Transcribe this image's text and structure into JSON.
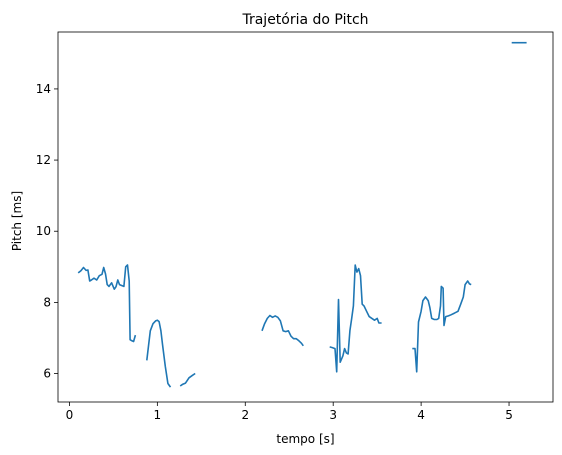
{
  "chart_data": {
    "type": "line",
    "title": "Trajetória do Pitch",
    "xlabel": "tempo [s]",
    "ylabel": "Pitch [ms]",
    "xlim": [
      -0.13,
      5.5
    ],
    "ylim": [
      5.2,
      15.6
    ],
    "xticks": [
      0,
      1,
      2,
      3,
      4,
      5
    ],
    "xtick_labels": [
      "0",
      "1",
      "2",
      "3",
      "4",
      "5"
    ],
    "yticks": [
      6,
      8,
      10,
      12,
      14
    ],
    "ytick_labels": [
      "6",
      "8",
      "10",
      "12",
      "14"
    ],
    "grid": false,
    "color": "#1f77b4",
    "series": [
      {
        "segments": [
          [
            [
              0.1,
              8.83
            ],
            [
              0.13,
              8.89
            ],
            [
              0.16,
              8.98
            ],
            [
              0.19,
              8.9
            ],
            [
              0.21,
              8.91
            ],
            [
              0.23,
              8.6
            ],
            [
              0.25,
              8.63
            ],
            [
              0.28,
              8.68
            ],
            [
              0.31,
              8.63
            ],
            [
              0.34,
              8.75
            ],
            [
              0.37,
              8.79
            ],
            [
              0.39,
              8.98
            ],
            [
              0.41,
              8.8
            ],
            [
              0.43,
              8.5
            ],
            [
              0.45,
              8.45
            ],
            [
              0.48,
              8.55
            ],
            [
              0.51,
              8.37
            ],
            [
              0.53,
              8.44
            ],
            [
              0.55,
              8.63
            ],
            [
              0.57,
              8.5
            ],
            [
              0.6,
              8.47
            ],
            [
              0.62,
              8.45
            ],
            [
              0.64,
              9.0
            ],
            [
              0.66,
              9.05
            ],
            [
              0.68,
              8.6
            ],
            [
              0.69,
              6.95
            ],
            [
              0.71,
              6.92
            ],
            [
              0.73,
              6.9
            ],
            [
              0.75,
              7.08
            ]
          ],
          [
            [
              0.88,
              6.37
            ],
            [
              0.9,
              6.8
            ],
            [
              0.92,
              7.2
            ],
            [
              0.95,
              7.4
            ],
            [
              0.98,
              7.48
            ],
            [
              1.0,
              7.5
            ],
            [
              1.02,
              7.46
            ],
            [
              1.04,
              7.2
            ],
            [
              1.06,
              6.8
            ],
            [
              1.09,
              6.2
            ],
            [
              1.12,
              5.72
            ],
            [
              1.15,
              5.62
            ]
          ],
          [
            [
              1.26,
              5.65
            ],
            [
              1.29,
              5.7
            ],
            [
              1.32,
              5.73
            ],
            [
              1.36,
              5.88
            ],
            [
              1.4,
              5.95
            ],
            [
              1.43,
              6.0
            ]
          ],
          [
            [
              2.19,
              7.2
            ],
            [
              2.22,
              7.4
            ],
            [
              2.25,
              7.55
            ],
            [
              2.28,
              7.63
            ],
            [
              2.31,
              7.58
            ],
            [
              2.34,
              7.62
            ],
            [
              2.37,
              7.58
            ],
            [
              2.4,
              7.48
            ],
            [
              2.43,
              7.2
            ],
            [
              2.46,
              7.18
            ],
            [
              2.49,
              7.2
            ],
            [
              2.52,
              7.05
            ],
            [
              2.55,
              6.98
            ],
            [
              2.58,
              6.98
            ],
            [
              2.61,
              6.92
            ],
            [
              2.64,
              6.85
            ],
            [
              2.66,
              6.78
            ]
          ],
          [
            [
              2.96,
              6.75
            ],
            [
              2.99,
              6.73
            ],
            [
              3.02,
              6.7
            ],
            [
              3.04,
              6.05
            ],
            [
              3.06,
              8.08
            ],
            [
              3.08,
              6.32
            ],
            [
              3.11,
              6.5
            ],
            [
              3.13,
              6.7
            ],
            [
              3.15,
              6.58
            ],
            [
              3.17,
              6.55
            ],
            [
              3.19,
              7.2
            ],
            [
              3.21,
              7.55
            ],
            [
              3.23,
              7.9
            ],
            [
              3.25,
              9.05
            ],
            [
              3.27,
              8.85
            ],
            [
              3.29,
              8.95
            ],
            [
              3.31,
              8.75
            ],
            [
              3.33,
              7.95
            ],
            [
              3.35,
              7.9
            ],
            [
              3.38,
              7.75
            ],
            [
              3.41,
              7.6
            ],
            [
              3.44,
              7.55
            ],
            [
              3.47,
              7.5
            ],
            [
              3.5,
              7.55
            ],
            [
              3.52,
              7.42
            ],
            [
              3.55,
              7.42
            ]
          ],
          [
            [
              3.9,
              6.7
            ],
            [
              3.93,
              6.7
            ],
            [
              3.95,
              6.05
            ],
            [
              3.97,
              7.45
            ],
            [
              4.0,
              7.75
            ],
            [
              4.02,
              8.05
            ],
            [
              4.05,
              8.15
            ],
            [
              4.08,
              8.05
            ],
            [
              4.1,
              7.85
            ],
            [
              4.12,
              7.55
            ],
            [
              4.15,
              7.52
            ],
            [
              4.18,
              7.52
            ],
            [
              4.2,
              7.55
            ],
            [
              4.22,
              7.9
            ],
            [
              4.23,
              8.45
            ],
            [
              4.25,
              8.4
            ],
            [
              4.26,
              7.35
            ],
            [
              4.28,
              7.6
            ],
            [
              4.31,
              7.62
            ],
            [
              4.34,
              7.65
            ],
            [
              4.38,
              7.7
            ],
            [
              4.42,
              7.75
            ],
            [
              4.45,
              7.95
            ],
            [
              4.48,
              8.15
            ],
            [
              4.5,
              8.5
            ],
            [
              4.53,
              8.6
            ],
            [
              4.55,
              8.52
            ],
            [
              4.57,
              8.5
            ]
          ],
          [
            [
              5.03,
              15.3
            ],
            [
              5.2,
              15.3
            ]
          ]
        ]
      }
    ]
  }
}
